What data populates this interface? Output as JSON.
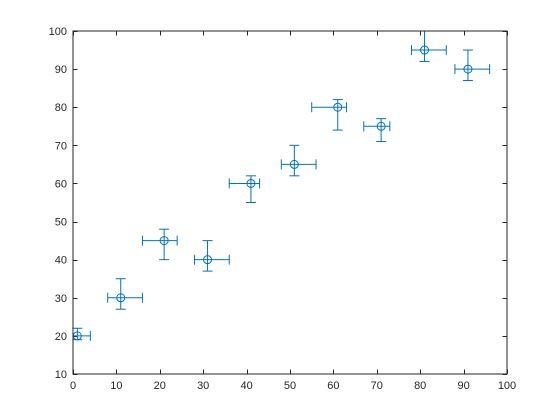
{
  "chart_data": {
    "type": "scatter",
    "title": "",
    "xlabel": "",
    "ylabel": "",
    "xlim": [
      0,
      100
    ],
    "ylim": [
      10,
      100
    ],
    "xticks": [
      0,
      10,
      20,
      30,
      40,
      50,
      60,
      70,
      80,
      90,
      100
    ],
    "yticks": [
      10,
      20,
      30,
      40,
      50,
      60,
      70,
      80,
      90,
      100
    ],
    "grid": false,
    "marker": "circle",
    "color": "#0072BD",
    "axis_color": "#262626",
    "points": [
      {
        "x": 1,
        "y": 20,
        "xneg": 1,
        "xpos": 3,
        "yneg": 1,
        "ypos": 2
      },
      {
        "x": 11,
        "y": 30,
        "xneg": 3,
        "xpos": 5,
        "yneg": 3,
        "ypos": 5
      },
      {
        "x": 21,
        "y": 45,
        "xneg": 5,
        "xpos": 3,
        "yneg": 5,
        "ypos": 3
      },
      {
        "x": 31,
        "y": 40,
        "xneg": 3,
        "xpos": 5,
        "yneg": 3,
        "ypos": 5
      },
      {
        "x": 41,
        "y": 60,
        "xneg": 5,
        "xpos": 2,
        "yneg": 5,
        "ypos": 2
      },
      {
        "x": 51,
        "y": 65,
        "xneg": 3,
        "xpos": 5,
        "yneg": 3,
        "ypos": 5
      },
      {
        "x": 61,
        "y": 80,
        "xneg": 6,
        "xpos": 2,
        "yneg": 6,
        "ypos": 2
      },
      {
        "x": 71,
        "y": 75,
        "xneg": 4,
        "xpos": 2,
        "yneg": 4,
        "ypos": 2
      },
      {
        "x": 81,
        "y": 95,
        "xneg": 3,
        "xpos": 5,
        "yneg": 3,
        "ypos": 5
      },
      {
        "x": 91,
        "y": 90,
        "xneg": 3,
        "xpos": 5,
        "yneg": 3,
        "ypos": 5
      }
    ]
  }
}
